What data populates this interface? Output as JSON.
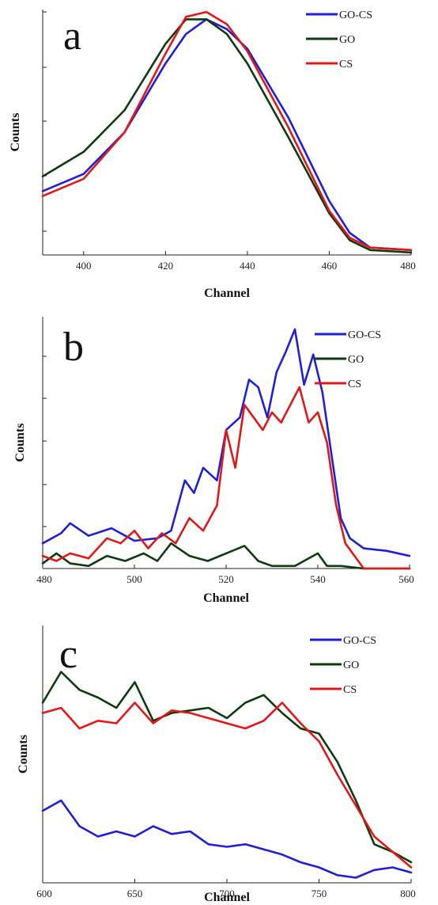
{
  "colors": {
    "GO-CS": "#1f1fd6",
    "GO": "#0f3a0f",
    "CS": "#e01818"
  },
  "chart_data": [
    {
      "type": "line",
      "panel_label": "a",
      "xlabel": "Channel",
      "ylabel": "Counts",
      "xlim": [
        390,
        480
      ],
      "ylim": [
        0,
        100
      ],
      "xticks": [
        400,
        420,
        440,
        460,
        480
      ],
      "yticks": [],
      "legend_position": "top-right",
      "series": [
        {
          "name": "GO-CS",
          "x": [
            390,
            400,
            410,
            420,
            425,
            430,
            435,
            440,
            450,
            460,
            465,
            470,
            480
          ],
          "y": [
            26,
            33,
            50,
            78,
            90,
            96,
            92,
            84,
            56,
            22,
            9,
            3,
            2
          ]
        },
        {
          "name": "GO",
          "x": [
            390,
            400,
            410,
            420,
            425,
            430,
            435,
            440,
            450,
            460,
            465,
            470,
            480
          ],
          "y": [
            32,
            42,
            59,
            86,
            96,
            96,
            90,
            78,
            48,
            17,
            6,
            2,
            1
          ]
        },
        {
          "name": "CS",
          "x": [
            390,
            400,
            410,
            420,
            425,
            430,
            435,
            440,
            450,
            460,
            465,
            470,
            480
          ],
          "y": [
            24,
            31,
            50,
            82,
            97,
            99,
            94,
            83,
            52,
            18,
            7,
            3,
            2
          ]
        }
      ]
    },
    {
      "type": "line",
      "panel_label": "b",
      "xlabel": "Channel",
      "ylabel": "Counts",
      "xlim": [
        480,
        560
      ],
      "ylim": [
        0,
        100
      ],
      "xticks": [
        480,
        500,
        520,
        540,
        560
      ],
      "yticks": [],
      "legend_position": "top-right",
      "series": [
        {
          "name": "GO-CS",
          "x": [
            480,
            484,
            486,
            490,
            495,
            500,
            505,
            508,
            511,
            513,
            515,
            518,
            520,
            523,
            525,
            527,
            529,
            531,
            533,
            535,
            537,
            539,
            541,
            543,
            545,
            547,
            550,
            555,
            560
          ],
          "y": [
            10,
            14,
            18,
            13,
            16,
            11,
            12,
            15,
            35,
            30,
            40,
            35,
            55,
            60,
            75,
            72,
            60,
            78,
            86,
            95,
            73,
            85,
            70,
            45,
            20,
            12,
            8,
            7,
            5
          ]
        },
        {
          "name": "GO",
          "x": [
            480,
            483,
            486,
            490,
            494,
            498,
            502,
            505,
            508,
            512,
            516,
            520,
            524,
            527,
            530,
            535,
            540,
            542,
            545,
            550,
            560
          ],
          "y": [
            2,
            6,
            2,
            1,
            5,
            3,
            6,
            3,
            10,
            5,
            3,
            6,
            9,
            3,
            1,
            1,
            6,
            1,
            1,
            0,
            0
          ]
        },
        {
          "name": "CS",
          "x": [
            480,
            483,
            486,
            490,
            494,
            497,
            500,
            503,
            506,
            509,
            512,
            515,
            518,
            520,
            522,
            524,
            526,
            528,
            530,
            532,
            534,
            536,
            538,
            540,
            542,
            544,
            546,
            550,
            560
          ],
          "y": [
            5,
            3,
            6,
            4,
            12,
            10,
            15,
            8,
            14,
            10,
            20,
            15,
            25,
            55,
            40,
            65,
            60,
            55,
            62,
            58,
            65,
            72,
            58,
            62,
            50,
            25,
            10,
            0,
            0
          ]
        }
      ]
    },
    {
      "type": "line",
      "panel_label": "c",
      "xlabel": "Channel",
      "ylabel": "Counts",
      "xlim": [
        600,
        800
      ],
      "ylim": [
        0,
        100
      ],
      "xticks": [
        600,
        650,
        700,
        750,
        800
      ],
      "yticks": [],
      "legend_position": "top-right",
      "series": [
        {
          "name": "GO-CS",
          "x": [
            600,
            610,
            620,
            630,
            640,
            650,
            660,
            670,
            680,
            690,
            700,
            710,
            720,
            730,
            740,
            750,
            760,
            770,
            780,
            790,
            800
          ],
          "y": [
            28,
            32,
            22,
            18,
            20,
            18,
            22,
            19,
            20,
            15,
            14,
            15,
            13,
            11,
            8,
            6,
            3,
            2,
            5,
            6,
            4
          ]
        },
        {
          "name": "GO",
          "x": [
            600,
            610,
            620,
            630,
            640,
            650,
            660,
            670,
            680,
            690,
            700,
            710,
            720,
            730,
            740,
            750,
            760,
            770,
            780,
            790,
            800
          ],
          "y": [
            70,
            82,
            75,
            72,
            68,
            78,
            63,
            66,
            67,
            68,
            64,
            70,
            73,
            66,
            60,
            58,
            47,
            32,
            15,
            12,
            8
          ]
        },
        {
          "name": "CS",
          "x": [
            600,
            610,
            620,
            630,
            640,
            650,
            660,
            670,
            680,
            690,
            700,
            710,
            720,
            730,
            740,
            750,
            760,
            770,
            780,
            790,
            800
          ],
          "y": [
            66,
            68,
            60,
            63,
            62,
            70,
            62,
            67,
            66,
            64,
            62,
            60,
            63,
            70,
            62,
            55,
            42,
            30,
            18,
            12,
            6
          ]
        }
      ]
    }
  ]
}
